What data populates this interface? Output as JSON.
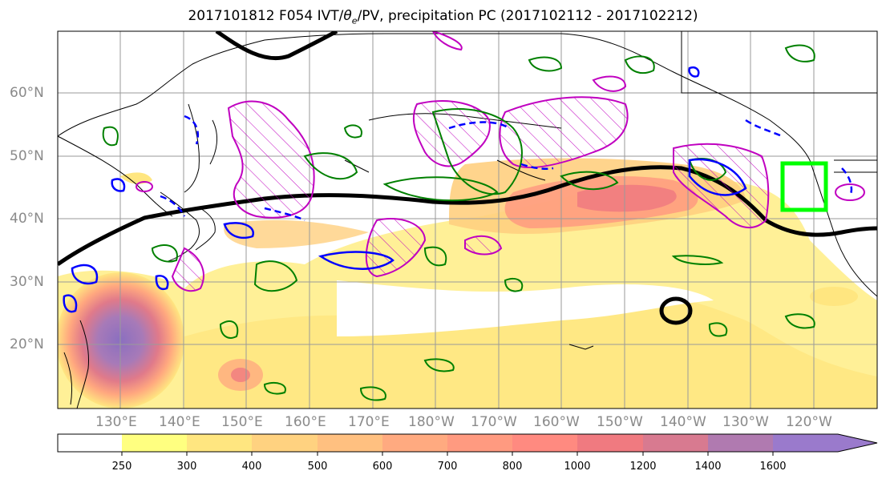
{
  "title": "2017101812 F054 IVT/",
  "title_theta": "θ",
  "title_sub": "e",
  "title_rest": "/PV, precipitation PC (2017102112 - 2017102212)",
  "lat_labels": [
    "60°N",
    "50°N",
    "40°N",
    "30°N",
    "20°N"
  ],
  "lon_labels": [
    "130°E",
    "140°E",
    "150°E",
    "160°E",
    "170°E",
    "180°W",
    "170°W",
    "160°W",
    "150°W",
    "140°W",
    "130°W",
    "120°W"
  ],
  "colorbar": {
    "ticks": [
      "250",
      "300",
      "400",
      "500",
      "600",
      "700",
      "800",
      "1000",
      "1200",
      "1400",
      "1600"
    ],
    "colors": [
      "#ffffff",
      "#ffff80",
      "#ffe680",
      "#ffd280",
      "#ffc080",
      "#ffaa80",
      "#ff9a80",
      "#ff8a80",
      "#f07a80",
      "#d87a90",
      "#b07ab0",
      "#9a7acc"
    ]
  },
  "legend_colors": {
    "theta_e_contour": "#000000",
    "pv_positive": "#008000",
    "pv_negative": "#0000ff",
    "precip_hatch": "#c000c0",
    "target_box": "#00ff00"
  }
}
